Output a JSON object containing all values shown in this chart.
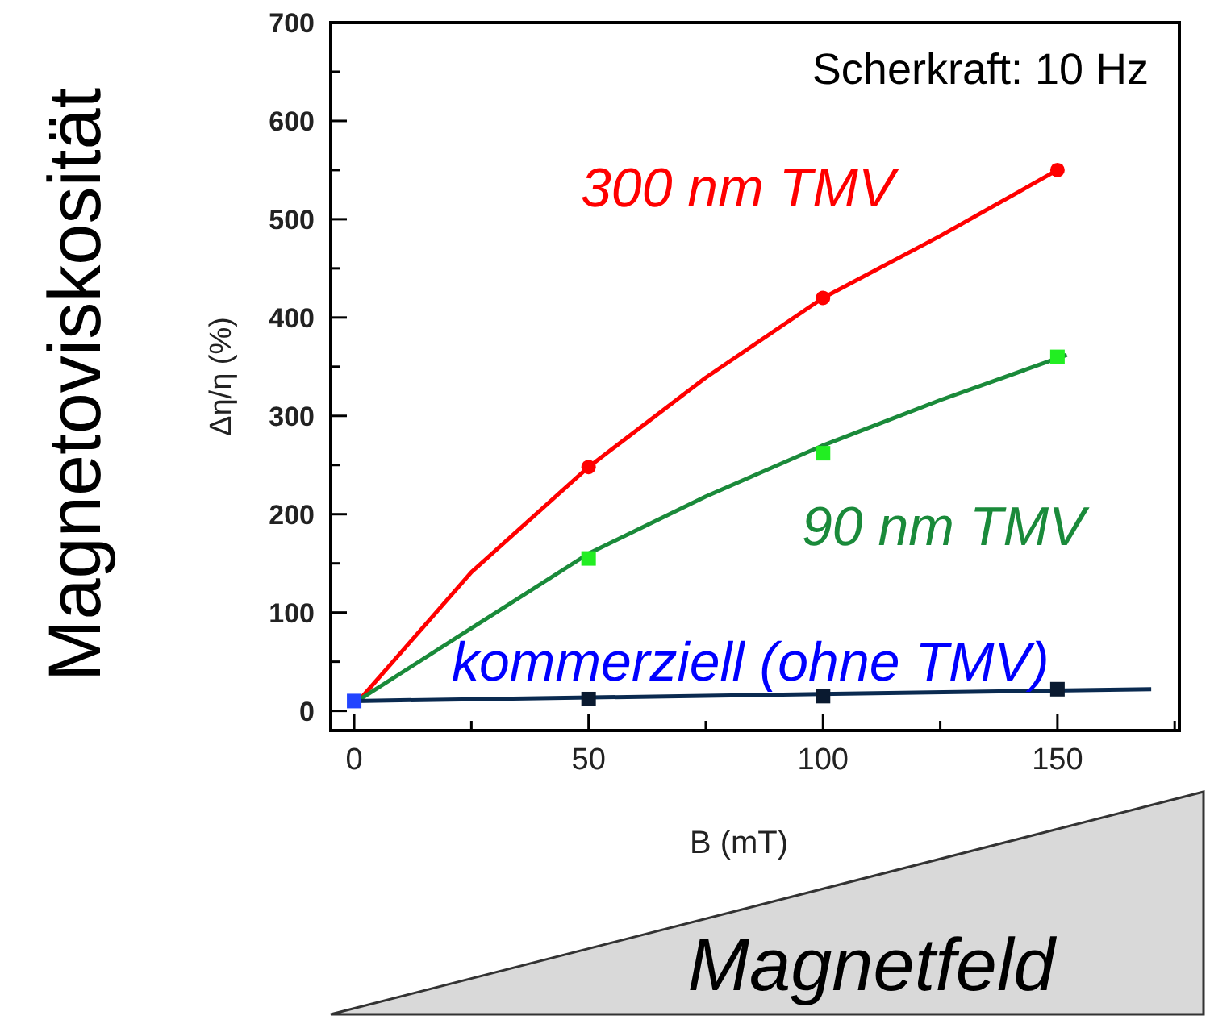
{
  "chart_data": {
    "type": "scatter",
    "xlabel": "B (mT)",
    "ylabel": "Δη/η (%)",
    "xlim": [
      -5,
      176
    ],
    "ylim": [
      -20,
      700
    ],
    "xticks": [
      0,
      {
        "value": 25,
        "label": null
      },
      50,
      {
        "value": 75,
        "label": null
      },
      100,
      {
        "value": 125,
        "label": null
      },
      150,
      {
        "value": 175,
        "label": null
      }
    ],
    "yticks": [
      0,
      {
        "value": 50,
        "label": null
      },
      100,
      {
        "value": 150,
        "label": null
      },
      200,
      {
        "value": 250,
        "label": null
      },
      300,
      {
        "value": 350,
        "label": null
      },
      400,
      {
        "value": 450,
        "label": null
      },
      500,
      {
        "value": 550,
        "label": null
      },
      600,
      {
        "value": 650,
        "label": null
      },
      700
    ],
    "grid": false,
    "series": [
      {
        "type": "line",
        "marker": "none",
        "color": "#ff0000",
        "x": [
          0,
          25,
          50,
          75,
          100,
          125,
          150
        ],
        "values": [
          5,
          141,
          248,
          339,
          420,
          483,
          550
        ]
      },
      {
        "type": "line",
        "marker": "none",
        "color": "#1a8a3a",
        "x": [
          0,
          25,
          50,
          75,
          100,
          125,
          152
        ],
        "values": [
          8,
          84,
          160,
          218,
          270,
          316,
          362
        ]
      },
      {
        "type": "line",
        "marker": "none",
        "color": "#0a2a50",
        "x": [
          0,
          170
        ],
        "values": [
          10,
          22
        ]
      },
      {
        "name": "300 nm TMV",
        "marker": "circle",
        "color": "#ff0000",
        "x": [
          50,
          100,
          150
        ],
        "values": [
          248,
          420,
          550
        ]
      },
      {
        "name": "90 nm TMV",
        "marker": "square",
        "color": "#1a8a3a",
        "colors": [
          "#22ee22",
          "#22ee22",
          "#22ee22"
        ],
        "x": [
          50,
          100,
          150
        ],
        "values": [
          155,
          262,
          360
        ]
      },
      {
        "name": "kommerziell (ohne TMV)",
        "marker": "square",
        "color": "#0000ff",
        "colors": [
          "#2244ff",
          "#0a1a30",
          "#0a1a30",
          "#0a1a30"
        ],
        "x": [
          0,
          50,
          100,
          150
        ],
        "values": [
          10,
          12,
          15,
          22
        ]
      }
    ],
    "annotations": [
      "Scherkraft: 10 Hz",
      "Magnetoviskosität",
      "Magnetfeld"
    ]
  }
}
